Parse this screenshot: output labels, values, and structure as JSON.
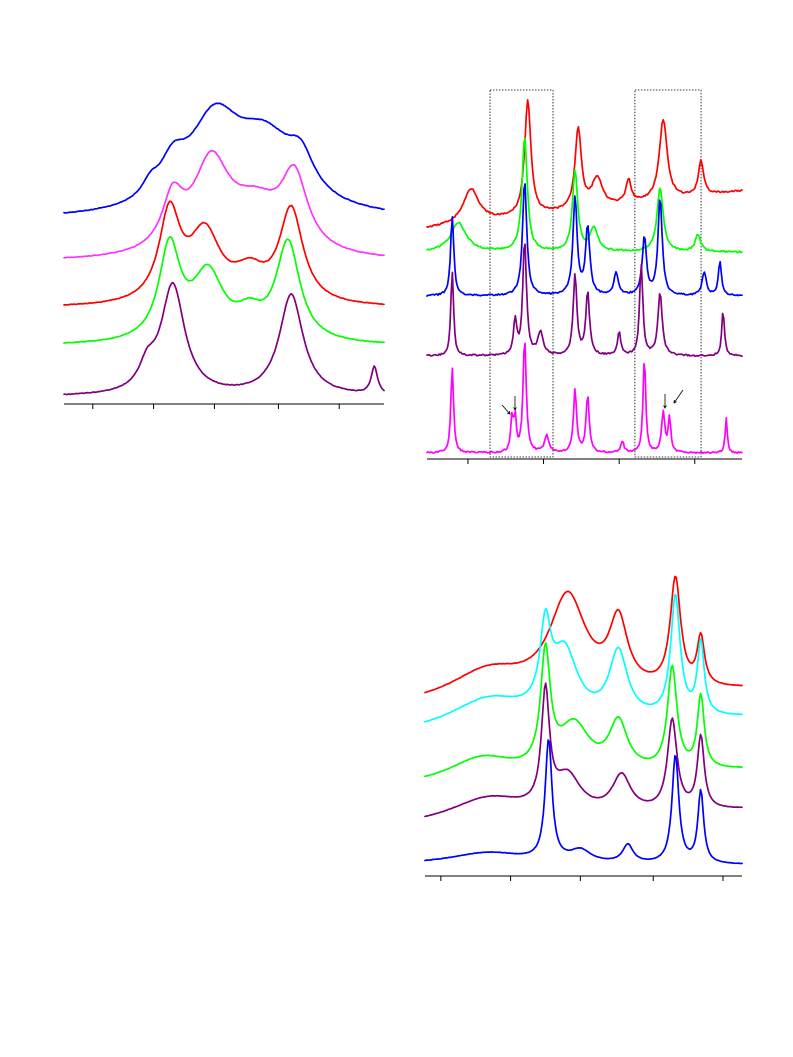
{
  "chart_data": [
    {
      "type": "line",
      "panel": "top-left",
      "title": "",
      "xlabel": "",
      "ylabel": "",
      "x_ticks_shown": 5,
      "stacked_offset": true,
      "series": [
        {
          "color": "#0000ff",
          "peaks": [
            {
              "x": 0.47,
              "h": 0.78,
              "w": 0.1
            },
            {
              "x": 0.63,
              "h": 0.62,
              "w": 0.12
            },
            {
              "x": 0.34,
              "h": 0.3,
              "w": 0.05
            },
            {
              "x": 0.27,
              "h": 0.12,
              "w": 0.03
            },
            {
              "x": 0.74,
              "h": 0.3,
              "w": 0.05
            }
          ]
        },
        {
          "color": "#ff33ff",
          "peaks": [
            {
              "x": 0.46,
              "h": 0.8,
              "w": 0.07
            },
            {
              "x": 0.72,
              "h": 0.65,
              "w": 0.05
            },
            {
              "x": 0.34,
              "h": 0.45,
              "w": 0.04
            },
            {
              "x": 0.6,
              "h": 0.42,
              "w": 0.1
            }
          ]
        },
        {
          "color": "#ff0000",
          "peaks": [
            {
              "x": 0.33,
              "h": 0.8,
              "w": 0.04
            },
            {
              "x": 0.44,
              "h": 0.62,
              "w": 0.06
            },
            {
              "x": 0.71,
              "h": 0.85,
              "w": 0.045
            },
            {
              "x": 0.58,
              "h": 0.25,
              "w": 0.06
            }
          ]
        },
        {
          "color": "#00ff00",
          "peaks": [
            {
              "x": 0.33,
              "h": 0.85,
              "w": 0.04
            },
            {
              "x": 0.45,
              "h": 0.6,
              "w": 0.06
            },
            {
              "x": 0.7,
              "h": 0.9,
              "w": 0.045
            },
            {
              "x": 0.58,
              "h": 0.2,
              "w": 0.05
            }
          ]
        },
        {
          "color": "#800080",
          "peaks": [
            {
              "x": 0.34,
              "h": 1.0,
              "w": 0.045
            },
            {
              "x": 0.71,
              "h": 0.92,
              "w": 0.045
            },
            {
              "x": 0.26,
              "h": 0.2,
              "w": 0.03
            },
            {
              "x": 0.97,
              "h": 0.25,
              "w": 0.012
            }
          ]
        }
      ]
    },
    {
      "type": "line",
      "panel": "top-right",
      "title": "",
      "xlabel": "",
      "ylabel": "",
      "x_ticks_shown": 4,
      "stacked_offset": true,
      "highlight_regions": [
        {
          "from": 0.2,
          "to": 0.4
        },
        {
          "from": 0.66,
          "to": 0.87
        }
      ],
      "arrow_annotations": 4,
      "series": [
        {
          "color": "#ff0000",
          "peaks": [
            {
              "x": 0.32,
              "h": 1.0,
              "w": 0.012
            },
            {
              "x": 0.48,
              "h": 0.7,
              "w": 0.012
            },
            {
              "x": 0.75,
              "h": 0.7,
              "w": 0.015
            },
            {
              "x": 0.87,
              "h": 0.3,
              "w": 0.01
            },
            {
              "x": 0.14,
              "h": 0.3,
              "w": 0.03
            },
            {
              "x": 0.54,
              "h": 0.25,
              "w": 0.02
            },
            {
              "x": 0.64,
              "h": 0.2,
              "w": 0.01
            }
          ]
        },
        {
          "color": "#00ff00",
          "peaks": [
            {
              "x": 0.31,
              "h": 1.0,
              "w": 0.01
            },
            {
              "x": 0.47,
              "h": 0.7,
              "w": 0.01
            },
            {
              "x": 0.74,
              "h": 0.55,
              "w": 0.012
            },
            {
              "x": 0.86,
              "h": 0.15,
              "w": 0.01
            },
            {
              "x": 0.1,
              "h": 0.25,
              "w": 0.03
            },
            {
              "x": 0.53,
              "h": 0.2,
              "w": 0.015
            }
          ]
        },
        {
          "color": "#0000ff",
          "peaks": [
            {
              "x": 0.08,
              "h": 0.7,
              "w": 0.006
            },
            {
              "x": 0.31,
              "h": 1.0,
              "w": 0.008
            },
            {
              "x": 0.47,
              "h": 0.85,
              "w": 0.008
            },
            {
              "x": 0.51,
              "h": 0.6,
              "w": 0.008
            },
            {
              "x": 0.74,
              "h": 0.85,
              "w": 0.008
            },
            {
              "x": 0.69,
              "h": 0.5,
              "w": 0.008
            },
            {
              "x": 0.93,
              "h": 0.3,
              "w": 0.006
            },
            {
              "x": 0.88,
              "h": 0.2,
              "w": 0.008
            },
            {
              "x": 0.6,
              "h": 0.2,
              "w": 0.008
            }
          ]
        },
        {
          "color": "#800080",
          "peaks": [
            {
              "x": 0.08,
              "h": 0.75,
              "w": 0.005
            },
            {
              "x": 0.31,
              "h": 1.0,
              "w": 0.007
            },
            {
              "x": 0.28,
              "h": 0.3,
              "w": 0.006
            },
            {
              "x": 0.47,
              "h": 0.7,
              "w": 0.007
            },
            {
              "x": 0.51,
              "h": 0.55,
              "w": 0.007
            },
            {
              "x": 0.68,
              "h": 0.8,
              "w": 0.006
            },
            {
              "x": 0.74,
              "h": 0.55,
              "w": 0.008
            },
            {
              "x": 0.94,
              "h": 0.4,
              "w": 0.005
            },
            {
              "x": 0.61,
              "h": 0.2,
              "w": 0.006
            },
            {
              "x": 0.36,
              "h": 0.2,
              "w": 0.01
            }
          ]
        },
        {
          "color": "#ff00ff",
          "peaks": [
            {
              "x": 0.08,
              "h": 0.75,
              "w": 0.005
            },
            {
              "x": 0.31,
              "h": 1.0,
              "w": 0.006
            },
            {
              "x": 0.27,
              "h": 0.3,
              "w": 0.005
            },
            {
              "x": 0.28,
              "h": 0.28,
              "w": 0.004
            },
            {
              "x": 0.47,
              "h": 0.55,
              "w": 0.006
            },
            {
              "x": 0.51,
              "h": 0.5,
              "w": 0.006
            },
            {
              "x": 0.69,
              "h": 0.85,
              "w": 0.005
            },
            {
              "x": 0.75,
              "h": 0.35,
              "w": 0.006
            },
            {
              "x": 0.77,
              "h": 0.3,
              "w": 0.005
            },
            {
              "x": 0.95,
              "h": 0.3,
              "w": 0.004
            },
            {
              "x": 0.38,
              "h": 0.15,
              "w": 0.008
            },
            {
              "x": 0.62,
              "h": 0.1,
              "w": 0.006
            }
          ]
        }
      ]
    },
    {
      "type": "line",
      "panel": "bottom-right",
      "title": "",
      "xlabel": "",
      "ylabel": "",
      "x_ticks_shown": 5,
      "stacked_offset": true,
      "series": [
        {
          "color": "#ff0000",
          "peaks": [
            {
              "x": 0.45,
              "h": 0.8,
              "w": 0.07
            },
            {
              "x": 0.61,
              "h": 0.55,
              "w": 0.035
            },
            {
              "x": 0.79,
              "h": 0.9,
              "w": 0.02
            },
            {
              "x": 0.87,
              "h": 0.4,
              "w": 0.014
            },
            {
              "x": 0.2,
              "h": 0.25,
              "w": 0.15
            }
          ]
        },
        {
          "color": "#00ffff",
          "peaks": [
            {
              "x": 0.38,
              "h": 0.65,
              "w": 0.02
            },
            {
              "x": 0.44,
              "h": 0.55,
              "w": 0.05
            },
            {
              "x": 0.61,
              "h": 0.55,
              "w": 0.035
            },
            {
              "x": 0.79,
              "h": 1.0,
              "w": 0.018
            },
            {
              "x": 0.87,
              "h": 0.6,
              "w": 0.013
            },
            {
              "x": 0.2,
              "h": 0.25,
              "w": 0.15
            }
          ]
        },
        {
          "color": "#00ff00",
          "peaks": [
            {
              "x": 0.38,
              "h": 0.95,
              "w": 0.018
            },
            {
              "x": 0.47,
              "h": 0.4,
              "w": 0.06
            },
            {
              "x": 0.61,
              "h": 0.4,
              "w": 0.035
            },
            {
              "x": 0.78,
              "h": 0.85,
              "w": 0.018
            },
            {
              "x": 0.87,
              "h": 0.6,
              "w": 0.013
            },
            {
              "x": 0.18,
              "h": 0.2,
              "w": 0.13
            }
          ]
        },
        {
          "color": "#800080",
          "peaks": [
            {
              "x": 0.38,
              "h": 0.95,
              "w": 0.015
            },
            {
              "x": 0.45,
              "h": 0.3,
              "w": 0.05
            },
            {
              "x": 0.62,
              "h": 0.3,
              "w": 0.035
            },
            {
              "x": 0.78,
              "h": 0.75,
              "w": 0.018
            },
            {
              "x": 0.87,
              "h": 0.6,
              "w": 0.013
            },
            {
              "x": 0.2,
              "h": 0.2,
              "w": 0.15
            }
          ]
        },
        {
          "color": "#0000ff",
          "peaks": [
            {
              "x": 0.39,
              "h": 1.0,
              "w": 0.013
            },
            {
              "x": 0.49,
              "h": 0.1,
              "w": 0.04
            },
            {
              "x": 0.64,
              "h": 0.15,
              "w": 0.02
            },
            {
              "x": 0.79,
              "h": 0.9,
              "w": 0.013
            },
            {
              "x": 0.87,
              "h": 0.6,
              "w": 0.011
            },
            {
              "x": 0.2,
              "h": 0.1,
              "w": 0.15
            }
          ]
        }
      ]
    }
  ]
}
